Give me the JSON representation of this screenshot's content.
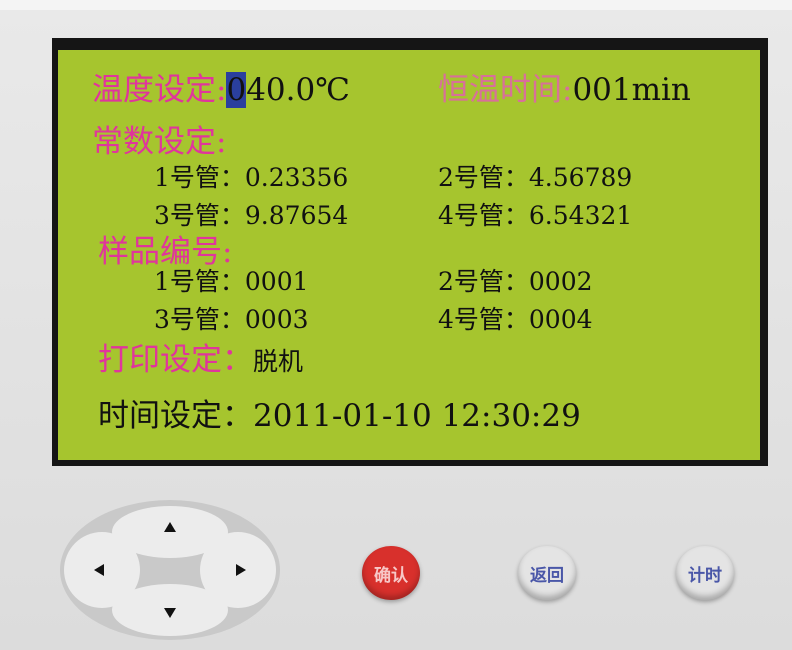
{
  "screen": {
    "temperature": {
      "label": "温度设定:",
      "cursor": "0",
      "rest": "40.0℃"
    },
    "hold_time": {
      "label": "恒温时间:",
      "value": "001min"
    },
    "constants": {
      "label": "常数设定:",
      "items": [
        {
          "tube": "1号管：",
          "value": "0.23356"
        },
        {
          "tube": "2号管：",
          "value": "4.56789"
        },
        {
          "tube": "3号管：",
          "value": "9.87654"
        },
        {
          "tube": "4号管：",
          "value": "6.54321"
        }
      ]
    },
    "samples": {
      "label": "样品编号:",
      "items": [
        {
          "tube": "1号管：",
          "value": "0001"
        },
        {
          "tube": "2号管：",
          "value": "0002"
        },
        {
          "tube": "3号管：",
          "value": "0003"
        },
        {
          "tube": "4号管：",
          "value": "0004"
        }
      ]
    },
    "print": {
      "label": "打印设定：",
      "value": "脱机"
    },
    "clock": {
      "label": "时间设定：",
      "value": "2011-01-10 12:30:29"
    }
  },
  "buttons": [
    "确认",
    "返回",
    "计时"
  ]
}
